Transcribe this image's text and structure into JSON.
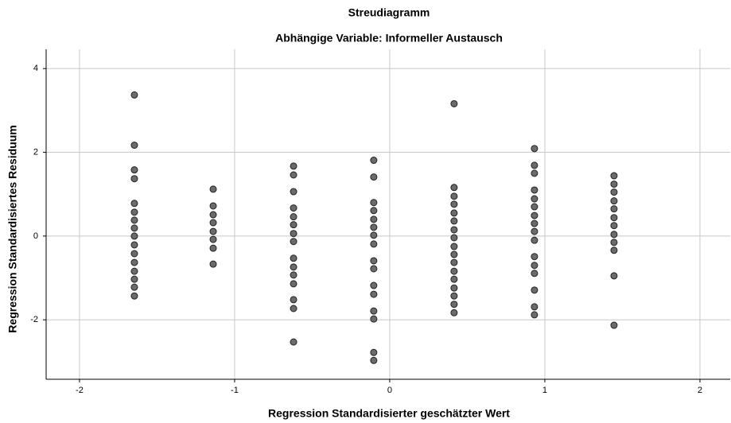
{
  "chart_data": {
    "type": "scatter",
    "title": "Streudiagramm",
    "subtitle": "Abhängige Variable: Informeller Austausch",
    "x_label": "Regression Standardisierter geschätzter Wert",
    "y_label": "Regression Standardisiertes Residuum",
    "xlim": [
      -2.215,
      2.195
    ],
    "ylim": [
      -3.42,
      4.46
    ],
    "xticks": [
      -2,
      -1,
      0,
      1,
      2
    ],
    "yticks": [
      -2,
      0,
      2,
      4
    ],
    "grid": true,
    "color": "#6b6b6b",
    "x": [
      -1.646,
      -1.646,
      -1.646,
      -1.646,
      -1.646,
      -1.646,
      -1.646,
      -1.646,
      -1.646,
      -1.646,
      -1.646,
      -1.646,
      -1.646,
      -1.646,
      -1.646,
      -1.646,
      -1.138,
      -1.138,
      -1.138,
      -1.138,
      -1.138,
      -1.138,
      -1.138,
      -1.138,
      -0.62,
      -0.62,
      -0.62,
      -0.62,
      -0.62,
      -0.62,
      -0.62,
      -0.62,
      -0.62,
      -0.62,
      -0.62,
      -0.62,
      -0.62,
      -0.62,
      -0.62,
      -0.103,
      -0.103,
      -0.103,
      -0.103,
      -0.103,
      -0.103,
      -0.103,
      -0.103,
      -0.103,
      -0.103,
      -0.103,
      -0.103,
      -0.103,
      -0.103,
      -0.103,
      -0.103,
      0.415,
      0.415,
      0.415,
      0.415,
      0.415,
      0.415,
      0.415,
      0.415,
      0.415,
      0.415,
      0.415,
      0.415,
      0.415,
      0.415,
      0.415,
      0.415,
      0.415,
      0.933,
      0.933,
      0.933,
      0.933,
      0.933,
      0.933,
      0.933,
      0.933,
      0.933,
      0.933,
      0.933,
      0.933,
      0.933,
      0.933,
      0.933,
      0.933,
      1.446,
      1.446,
      1.446,
      1.446,
      1.446,
      1.446,
      1.446,
      1.446,
      1.446,
      1.446,
      1.446,
      1.446
    ],
    "y": [
      3.37,
      2.17,
      1.58,
      1.37,
      0.78,
      0.57,
      0.38,
      0.19,
      0,
      -0.21,
      -0.42,
      -0.63,
      -0.84,
      -1.03,
      -1.22,
      -1.43,
      1.12,
      0.72,
      0.51,
      0.32,
      0.11,
      -0.08,
      -0.29,
      -0.67,
      1.67,
      1.46,
      1.06,
      0.67,
      0.46,
      0.27,
      0.06,
      -0.13,
      -0.53,
      -0.74,
      -0.93,
      -1.14,
      -1.52,
      -1.73,
      -2.53,
      1.81,
      1.41,
      0.8,
      0.61,
      0.4,
      0.21,
      0.02,
      -0.19,
      -0.59,
      -0.78,
      -1.18,
      -1.39,
      -1.79,
      -1.98,
      -2.78,
      -2.97,
      3.16,
      1.16,
      0.95,
      0.76,
      0.55,
      0.36,
      0.15,
      -0.04,
      -0.25,
      -0.44,
      -0.63,
      -0.84,
      -1.03,
      -1.24,
      -1.43,
      -1.63,
      -1.83,
      2.09,
      1.69,
      1.5,
      1.1,
      0.89,
      0.7,
      0.49,
      0.3,
      0.11,
      -0.1,
      -0.49,
      -0.7,
      -0.89,
      -1.29,
      -1.69,
      -1.88,
      1.44,
      1.24,
      1.05,
      0.84,
      0.65,
      0.44,
      0.25,
      0.04,
      -0.15,
      -0.34,
      -0.95,
      -2.13
    ]
  }
}
